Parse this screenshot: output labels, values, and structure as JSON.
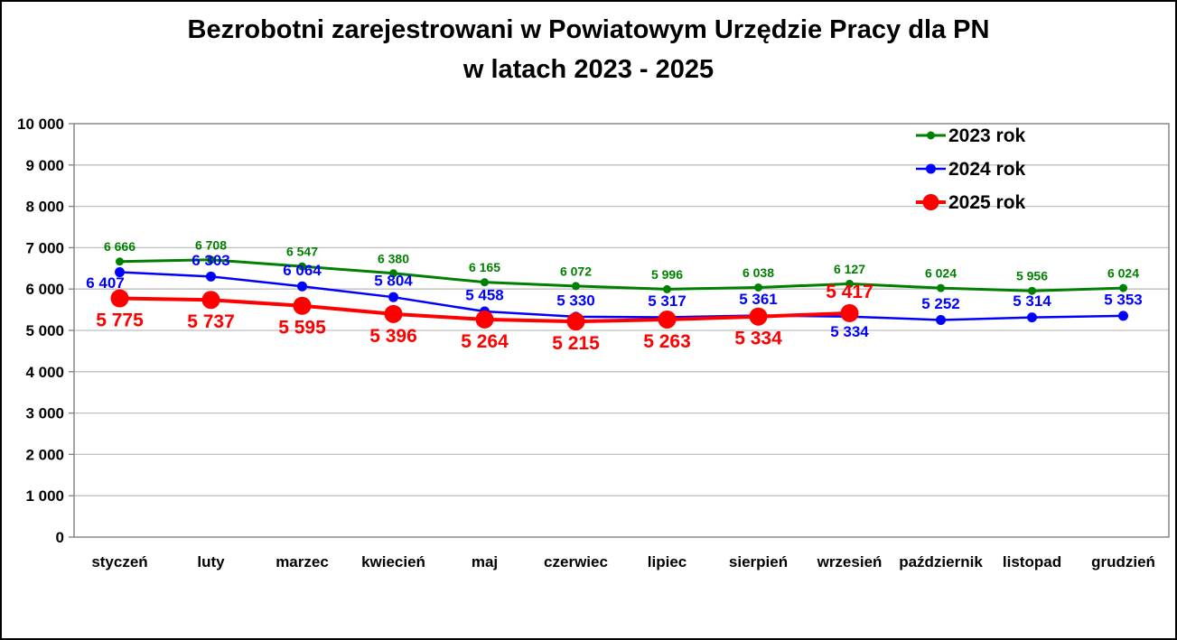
{
  "title": {
    "line1": "Bezrobotni zarejestrowani w Powiatowym Urzędzie Pracy dla PN",
    "line2": "w latach 2023 - 2025"
  },
  "chart_data": {
    "type": "line",
    "title": "Bezrobotni zarejestrowani w Powiatowym Urzędzie Pracy dla PN w latach 2023 - 2025",
    "categories": [
      "styczeń",
      "luty",
      "marzec",
      "kwiecień",
      "maj",
      "czerwiec",
      "lipiec",
      "sierpień",
      "wrzesień",
      "październik",
      "listopad",
      "grudzień"
    ],
    "series": [
      {
        "name": "2023 rok",
        "color": "#008000",
        "line_width": 3,
        "marker_radius": 4.5,
        "label_font_size": 14,
        "values": [
          6666,
          6708,
          6547,
          6380,
          6165,
          6072,
          5996,
          6038,
          6127,
          6024,
          5956,
          6024
        ],
        "label_placement": [
          "above",
          "above",
          "above",
          "above",
          "above",
          "above",
          "above",
          "above",
          "above",
          "above",
          "above",
          "above"
        ]
      },
      {
        "name": "2024 rok",
        "color": "#0000FF",
        "line_width": 2.5,
        "marker_radius": 5.5,
        "label_font_size": 17,
        "values": [
          6407,
          6303,
          6064,
          5804,
          5458,
          5330,
          5317,
          5361,
          5334,
          5252,
          5314,
          5353
        ],
        "label_placement": [
          "below-left",
          "above",
          "above",
          "above",
          "above",
          "above",
          "above",
          "above",
          "below",
          "above",
          "above",
          "above"
        ]
      },
      {
        "name": "2025 rok",
        "color": "#FF0000",
        "line_width": 4,
        "marker_radius": 10,
        "label_font_size": 21,
        "values": [
          5775,
          5737,
          5595,
          5396,
          5264,
          5215,
          5263,
          5334,
          5417,
          null,
          null,
          null
        ],
        "label_placement": [
          "below",
          "below",
          "below",
          "below",
          "below",
          "below",
          "below",
          "below",
          "above",
          null,
          null,
          null
        ]
      }
    ],
    "ylim": [
      0,
      10000
    ],
    "ytick_step": 1000,
    "ytick_labels": [
      "0",
      "1 000",
      "2 000",
      "3 000",
      "4 000",
      "5 000",
      "6 000",
      "7 000",
      "8 000",
      "9 000",
      "10 000"
    ],
    "grid": true,
    "gridlines": "horizontal-only",
    "legend_position": "top-right-inside",
    "number_format": "space-thousands"
  },
  "colors": {
    "grid": "#BFBFBF",
    "plot_border": "#7F7F7F",
    "text": "#000000",
    "background": "#FFFFFF",
    "frame_border": "#000000"
  }
}
